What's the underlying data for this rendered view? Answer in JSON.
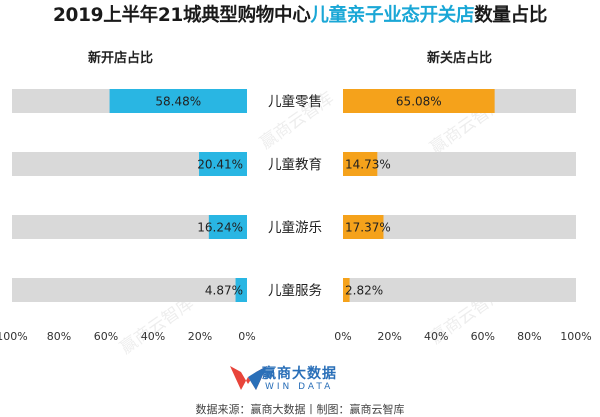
{
  "title": {
    "part1": "2019上半年21城典型购物中心",
    "highlight": "儿童亲子业态开关店",
    "part2": "数量占比"
  },
  "chart_data": [
    {
      "type": "bar",
      "title": "新开店占比",
      "orientation": "horizontal",
      "direction": "right-to-left",
      "categories": [
        "儿童零售",
        "儿童教育",
        "儿童游乐",
        "儿童服务"
      ],
      "values": [
        58.48,
        20.41,
        16.24,
        4.87
      ],
      "value_labels": [
        "58.48%",
        "20.41%",
        "16.24%",
        "4.87%"
      ],
      "xlim": [
        0,
        100
      ],
      "ticks": [
        "0%",
        "20%",
        "40%",
        "60%",
        "80%",
        "100%"
      ],
      "color": "#29b6e3",
      "track_color": "#d9d9d9"
    },
    {
      "type": "bar",
      "title": "新关店占比",
      "orientation": "horizontal",
      "direction": "left-to-right",
      "categories": [
        "儿童零售",
        "儿童教育",
        "儿童游乐",
        "儿童服务"
      ],
      "values": [
        65.08,
        14.73,
        17.37,
        2.82
      ],
      "value_labels": [
        "65.08%",
        "14.73%",
        "17.37%",
        "2.82%"
      ],
      "xlim": [
        0,
        100
      ],
      "ticks": [
        "0%",
        "20%",
        "40%",
        "60%",
        "80%",
        "100%"
      ],
      "color": "#f5a21b",
      "track_color": "#d9d9d9"
    }
  ],
  "brand": {
    "name_cn": "赢商大数据",
    "name_en": "WIN DATA"
  },
  "source": "数据来源：赢商大数据丨制图：赢商云智库",
  "watermark": "赢商云智库"
}
